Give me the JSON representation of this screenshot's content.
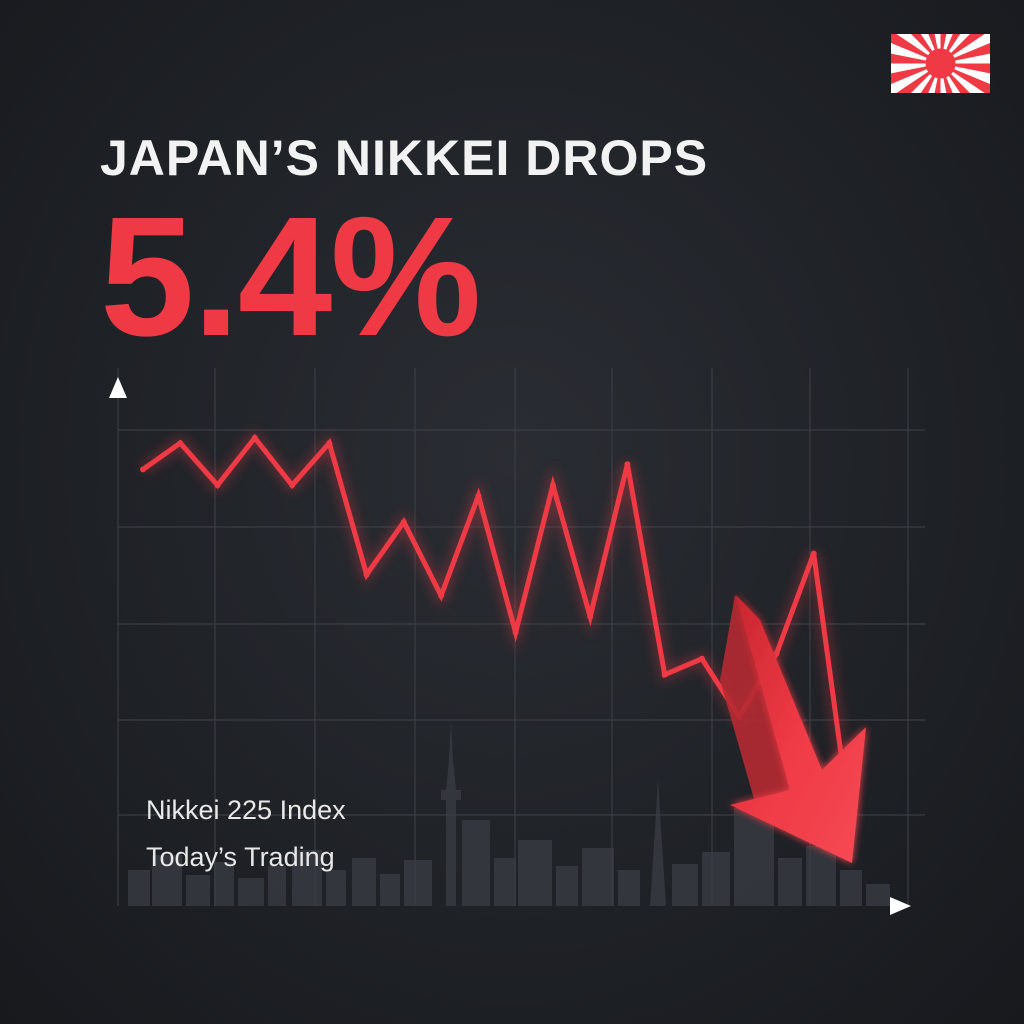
{
  "headline": "JAPAN’S NIKKEI DROPS",
  "drop_value": "5.4%",
  "labels": {
    "line1": "Nikkei 225 Index",
    "line2": "Today’s Trading"
  },
  "icons": {
    "flag": "rising-sun-flag-icon",
    "trend": "down-arrow-icon",
    "skyline": "tokyo-skyline-icon"
  },
  "colors": {
    "background": "#1f2227",
    "accent": "#ef3a45",
    "text": "#f2f2f2",
    "axis": "#ffffff"
  },
  "chart_data": {
    "type": "line",
    "title": "",
    "xlabel": "",
    "ylabel": "",
    "x": [
      0,
      1,
      2,
      3,
      4,
      5,
      6,
      7,
      8,
      9,
      10,
      11,
      12,
      13,
      14,
      15,
      16,
      17,
      18,
      19
    ],
    "ylim": [
      0,
      10
    ],
    "grid": true,
    "series": [
      {
        "color": "#ef3a45",
        "values": [
          8.3,
          8.8,
          8.0,
          8.9,
          8.0,
          8.8,
          6.3,
          7.3,
          5.9,
          7.8,
          5.2,
          8.0,
          5.5,
          8.4,
          4.4,
          4.7,
          3.6,
          4.8,
          6.7,
          1.5
        ]
      }
    ]
  }
}
